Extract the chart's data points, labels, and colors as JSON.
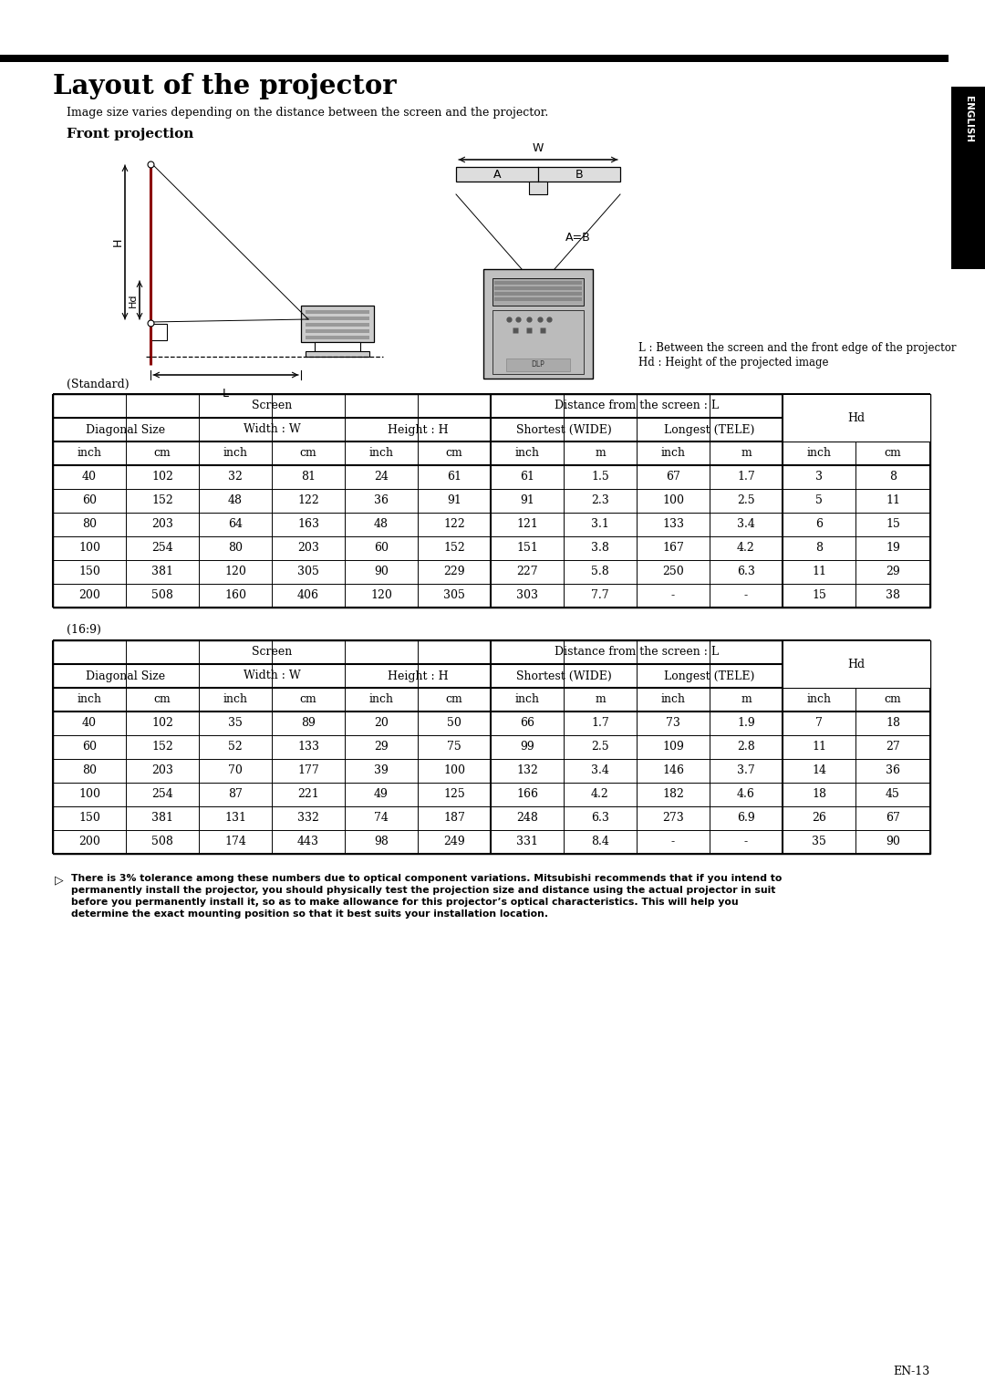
{
  "title": "Layout of the projector",
  "subtitle": "Image size varies depending on the distance between the screen and the projector.",
  "section": "Front projection",
  "legend_L": "L : Between the screen and the front edge of the projector",
  "legend_Hd": "Hd : Height of the projected image",
  "standard_label": "(Standard)",
  "widescreen_label": "(16:9)",
  "note_line1": "There is 3% tolerance among these numbers due to optical component variations. Mitsubishi recommends that if you intend to",
  "note_line2": "permanently install the projector, you should physically test the projection size and distance using the actual projector in suit",
  "note_line3": "before you permanently install it, so as to make allowance for this projector’s optical characteristics. This will help you",
  "note_line4": "determine the exact mounting position so that it best suits your installation location.",
  "page_num": "EN-13",
  "english_sidebar": "ENGLISH",
  "table_standard": {
    "header3": [
      "inch",
      "cm",
      "inch",
      "cm",
      "inch",
      "cm",
      "inch",
      "m",
      "inch",
      "m",
      "inch",
      "cm"
    ],
    "rows": [
      [
        "40",
        "102",
        "32",
        "81",
        "24",
        "61",
        "61",
        "1.5",
        "67",
        "1.7",
        "3",
        "8"
      ],
      [
        "60",
        "152",
        "48",
        "122",
        "36",
        "91",
        "91",
        "2.3",
        "100",
        "2.5",
        "5",
        "11"
      ],
      [
        "80",
        "203",
        "64",
        "163",
        "48",
        "122",
        "121",
        "3.1",
        "133",
        "3.4",
        "6",
        "15"
      ],
      [
        "100",
        "254",
        "80",
        "203",
        "60",
        "152",
        "151",
        "3.8",
        "167",
        "4.2",
        "8",
        "19"
      ],
      [
        "150",
        "381",
        "120",
        "305",
        "90",
        "229",
        "227",
        "5.8",
        "250",
        "6.3",
        "11",
        "29"
      ],
      [
        "200",
        "508",
        "160",
        "406",
        "120",
        "305",
        "303",
        "7.7",
        "-",
        "-",
        "15",
        "38"
      ]
    ]
  },
  "table_169": {
    "header3": [
      "inch",
      "cm",
      "inch",
      "cm",
      "inch",
      "cm",
      "inch",
      "m",
      "inch",
      "m",
      "inch",
      "cm"
    ],
    "rows": [
      [
        "40",
        "102",
        "35",
        "89",
        "20",
        "50",
        "66",
        "1.7",
        "73",
        "1.9",
        "7",
        "18"
      ],
      [
        "60",
        "152",
        "52",
        "133",
        "29",
        "75",
        "99",
        "2.5",
        "109",
        "2.8",
        "11",
        "27"
      ],
      [
        "80",
        "203",
        "70",
        "177",
        "39",
        "100",
        "132",
        "3.4",
        "146",
        "3.7",
        "14",
        "36"
      ],
      [
        "100",
        "254",
        "87",
        "221",
        "49",
        "125",
        "166",
        "4.2",
        "182",
        "4.6",
        "18",
        "45"
      ],
      [
        "150",
        "381",
        "131",
        "332",
        "74",
        "187",
        "248",
        "6.3",
        "273",
        "6.9",
        "26",
        "67"
      ],
      [
        "200",
        "508",
        "174",
        "443",
        "98",
        "249",
        "331",
        "8.4",
        "-",
        "-",
        "35",
        "90"
      ]
    ]
  }
}
